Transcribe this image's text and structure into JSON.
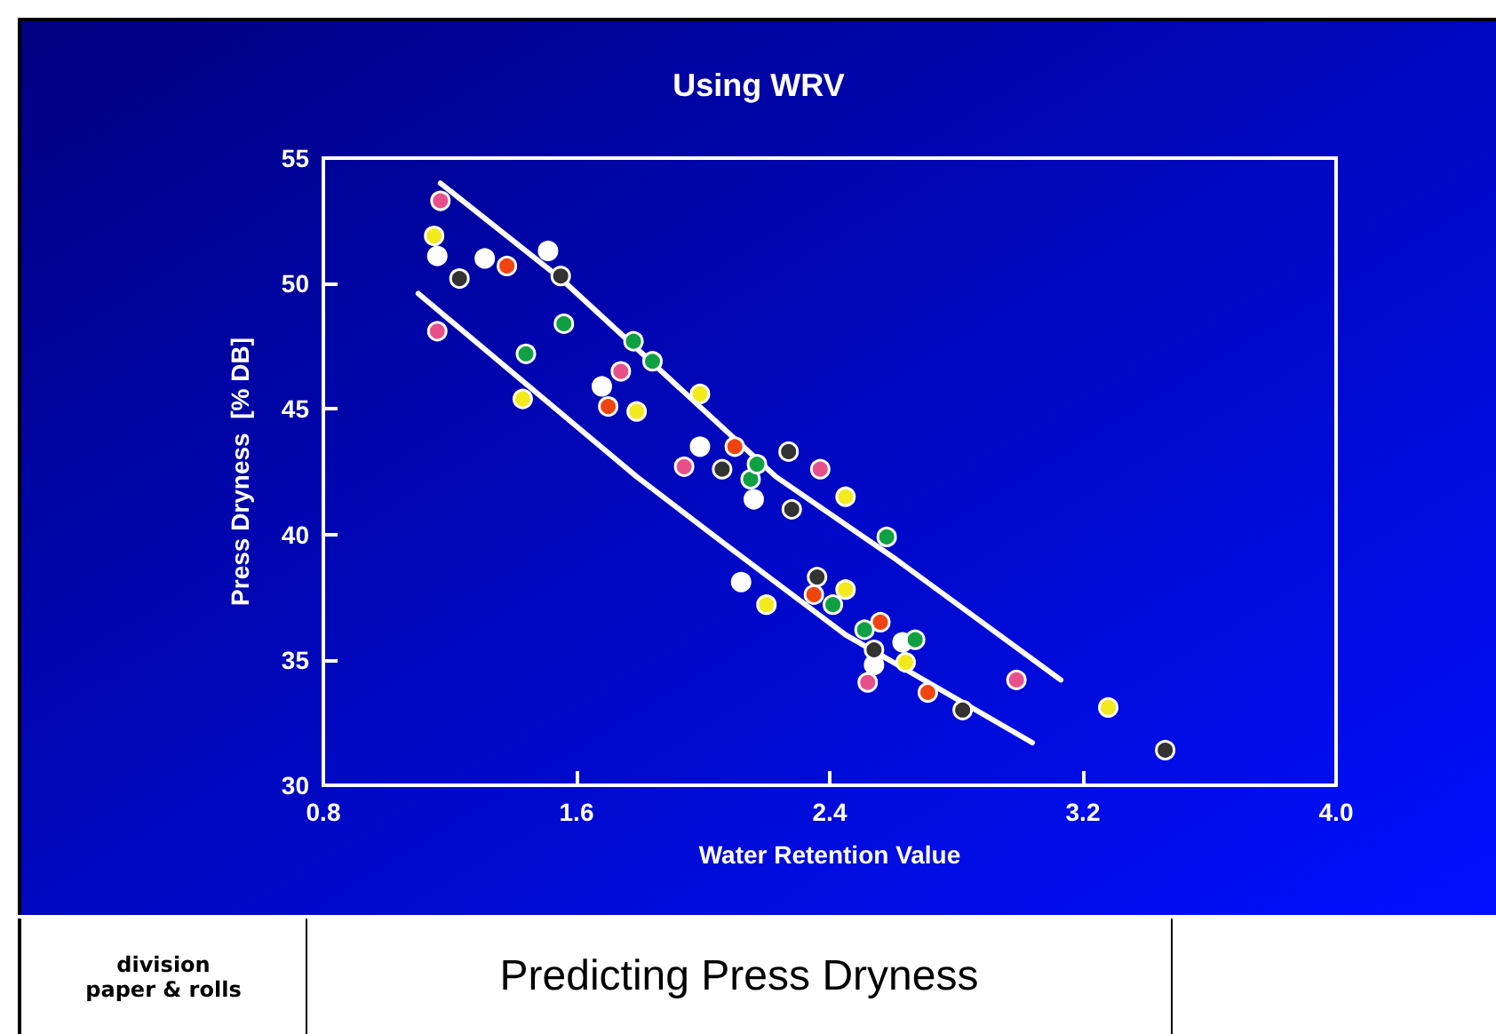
{
  "chart_data": {
    "type": "scatter",
    "title": "Using WRV",
    "xlabel": "Water Retention Value",
    "ylabel": "Press Dryness  [% DB]",
    "xlim": [
      0.8,
      4.0
    ],
    "xticks": [
      0.8,
      1.6,
      2.4,
      3.2,
      {
        "value": 4.0,
        "label": "4.0"
      }
    ],
    "ylim": [
      30,
      55
    ],
    "yticks": [
      30,
      35,
      40,
      45,
      50,
      55
    ],
    "grid": false,
    "marker": "circle",
    "annotations": [
      "division\npaper & rolls",
      "Predicting Press Dryness"
    ],
    "series": [
      {
        "color": "#e8508c",
        "x": [
          1.17,
          1.16,
          1.74,
          1.94,
          2.37,
          2.52,
          2.99
        ],
        "values": [
          53.3,
          48.1,
          46.5,
          42.7,
          42.6,
          34.1,
          34.2
        ]
      },
      {
        "color": "#f2ea1c",
        "x": [
          1.15,
          1.43,
          1.79,
          1.99,
          2.45,
          2.2,
          2.45,
          2.64,
          3.28
        ],
        "values": [
          51.9,
          45.4,
          44.9,
          45.6,
          41.5,
          37.2,
          37.8,
          34.9,
          33.1
        ]
      },
      {
        "color": "#ffffff",
        "x": [
          1.16,
          1.31,
          1.51,
          1.68,
          1.99,
          2.16,
          2.12,
          2.54,
          2.63
        ],
        "values": [
          51.1,
          51.0,
          51.3,
          45.9,
          43.5,
          41.4,
          38.1,
          34.8,
          35.7
        ]
      },
      {
        "color": "#333333",
        "x": [
          1.23,
          1.55,
          2.06,
          2.27,
          2.28,
          2.36,
          2.54,
          2.82,
          3.46
        ],
        "values": [
          50.2,
          50.3,
          42.6,
          43.3,
          41.0,
          38.3,
          35.4,
          33.0,
          31.4
        ]
      },
      {
        "color": "#f04410",
        "x": [
          1.38,
          1.7,
          2.1,
          2.35,
          2.56,
          2.71
        ],
        "values": [
          50.7,
          45.1,
          43.5,
          37.6,
          36.5,
          33.7
        ]
      },
      {
        "color": "#10a044",
        "x": [
          1.44,
          1.56,
          1.78,
          1.84,
          2.15,
          2.17,
          2.41,
          2.51,
          2.58,
          2.67
        ],
        "values": [
          47.2,
          48.4,
          47.7,
          46.9,
          42.2,
          42.8,
          37.2,
          36.2,
          39.9,
          35.8
        ]
      },
      {
        "type": "line",
        "marker": "none",
        "color": "#ffffff",
        "x": [
          1.17,
          1.55,
          2.23,
          2.61,
          3.13
        ],
        "values": [
          54.0,
          50.2,
          42.3,
          39.0,
          34.2
        ]
      },
      {
        "type": "line",
        "marker": "none",
        "color": "#ffffff",
        "x": [
          1.1,
          1.79,
          2.06,
          2.45,
          3.04
        ],
        "values": [
          49.6,
          42.3,
          39.7,
          36.0,
          31.7
        ]
      }
    ]
  }
}
